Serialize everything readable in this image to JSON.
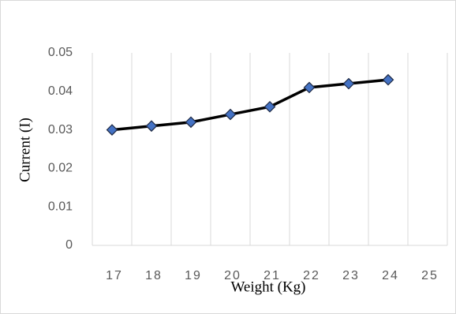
{
  "chart_data": {
    "type": "line",
    "x_label": "Weight (Kg)",
    "y_label": "Current (I)",
    "categories": [
      "17",
      "18",
      "19",
      "20",
      "21",
      "22",
      "23",
      "24",
      "25"
    ],
    "series": [
      {
        "color": "#000000",
        "marker_color": "#4472c4",
        "values": [
          0.03,
          0.031,
          0.032,
          0.034,
          0.036,
          0.041,
          0.042,
          0.043,
          null
        ]
      }
    ],
    "ylim": [
      0,
      0.05
    ],
    "yticks": [
      0,
      0.01,
      0.02,
      0.03,
      0.04,
      0.05
    ],
    "grid": "x"
  }
}
